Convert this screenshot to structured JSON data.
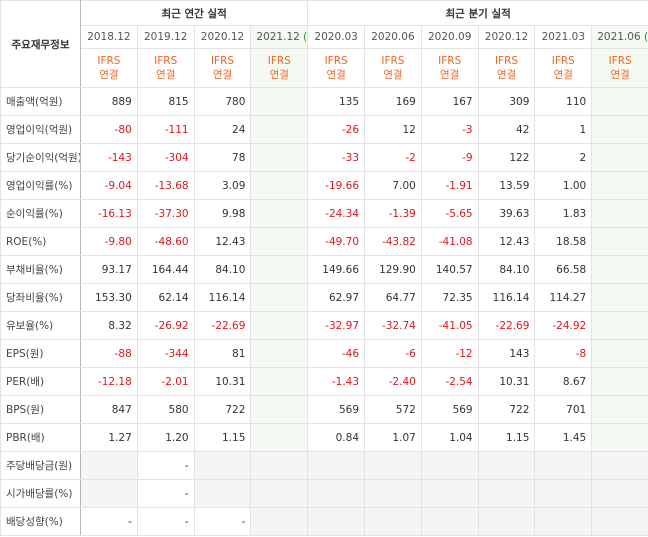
{
  "table": {
    "corner": "주요재무정보",
    "groups": [
      {
        "title": "최근 연간 실적",
        "span": 4
      },
      {
        "title": "최근 분기 실적",
        "span": 6
      }
    ],
    "columns": [
      {
        "date": "2018.12",
        "standard": "IFRS",
        "basis": "연결"
      },
      {
        "date": "2019.12",
        "standard": "IFRS",
        "basis": "연결"
      },
      {
        "date": "2020.12",
        "standard": "IFRS",
        "basis": "연결"
      },
      {
        "date": "2021.12",
        "estimate": "(E)",
        "standard": "IFRS",
        "basis": "연결"
      },
      {
        "date": "2020.03",
        "standard": "IFRS",
        "basis": "연결"
      },
      {
        "date": "2020.06",
        "standard": "IFRS",
        "basis": "연결"
      },
      {
        "date": "2020.09",
        "standard": "IFRS",
        "basis": "연결"
      },
      {
        "date": "2020.12",
        "standard": "IFRS",
        "basis": "연결"
      },
      {
        "date": "2021.03",
        "standard": "IFRS",
        "basis": "연결"
      },
      {
        "date": "2021.06",
        "estimate": "(E)",
        "standard": "IFRS",
        "basis": "연결"
      }
    ],
    "rows": [
      {
        "label": "매출액(억원)",
        "values": [
          "889",
          "815",
          "780",
          null,
          "135",
          "169",
          "167",
          "309",
          "110",
          null
        ]
      },
      {
        "label": "영업이익(억원)",
        "values": [
          "-80",
          "-111",
          "24",
          null,
          "-26",
          "12",
          "-3",
          "42",
          "1",
          null
        ]
      },
      {
        "label": "당기순이익(억원)",
        "values": [
          "-143",
          "-304",
          "78",
          null,
          "-33",
          "-2",
          "-9",
          "122",
          "2",
          null
        ]
      },
      {
        "label": "영업이익률(%)",
        "values": [
          "-9.04",
          "-13.68",
          "3.09",
          null,
          "-19.66",
          "7.00",
          "-1.91",
          "13.59",
          "1.00",
          null
        ]
      },
      {
        "label": "순이익률(%)",
        "values": [
          "-16.13",
          "-37.30",
          "9.98",
          null,
          "-24.34",
          "-1.39",
          "-5.65",
          "39.63",
          "1.83",
          null
        ]
      },
      {
        "label": "ROE(%)",
        "values": [
          "-9.80",
          "-48.60",
          "12.43",
          null,
          "-49.70",
          "-43.82",
          "-41.08",
          "12.43",
          "18.58",
          null
        ]
      },
      {
        "label": "부채비율(%)",
        "values": [
          "93.17",
          "164.44",
          "84.10",
          null,
          "149.66",
          "129.90",
          "140.57",
          "84.10",
          "66.58",
          null
        ]
      },
      {
        "label": "당좌비율(%)",
        "values": [
          "153.30",
          "62.14",
          "116.14",
          null,
          "62.97",
          "64.77",
          "72.35",
          "116.14",
          "114.27",
          null
        ]
      },
      {
        "label": "유보율(%)",
        "values": [
          "8.32",
          "-26.92",
          "-22.69",
          null,
          "-32.97",
          "-32.74",
          "-41.05",
          "-22.69",
          "-24.92",
          null
        ]
      },
      {
        "label": "EPS(원)",
        "values": [
          "-88",
          "-344",
          "81",
          null,
          "-46",
          "-6",
          "-12",
          "143",
          "-8",
          null
        ]
      },
      {
        "label": "PER(배)",
        "values": [
          "-12.18",
          "-2.01",
          "10.31",
          null,
          "-1.43",
          "-2.40",
          "-2.54",
          "10.31",
          "8.67",
          null
        ]
      },
      {
        "label": "BPS(원)",
        "values": [
          "847",
          "580",
          "722",
          null,
          "569",
          "572",
          "569",
          "722",
          "701",
          null
        ]
      },
      {
        "label": "PBR(배)",
        "values": [
          "1.27",
          "1.20",
          "1.15",
          null,
          "0.84",
          "1.07",
          "1.04",
          "1.15",
          "1.45",
          null
        ]
      },
      {
        "label": "주당배당금(원)",
        "values": [
          null,
          "-",
          null,
          null,
          null,
          null,
          null,
          null,
          null,
          null
        ]
      },
      {
        "label": "시가배당률(%)",
        "values": [
          null,
          "-",
          null,
          null,
          null,
          null,
          null,
          null,
          null,
          null
        ]
      },
      {
        "label": "배당성향(%)",
        "values": [
          "-",
          "-",
          "-",
          null,
          null,
          null,
          null,
          null,
          null,
          null
        ]
      }
    ]
  }
}
